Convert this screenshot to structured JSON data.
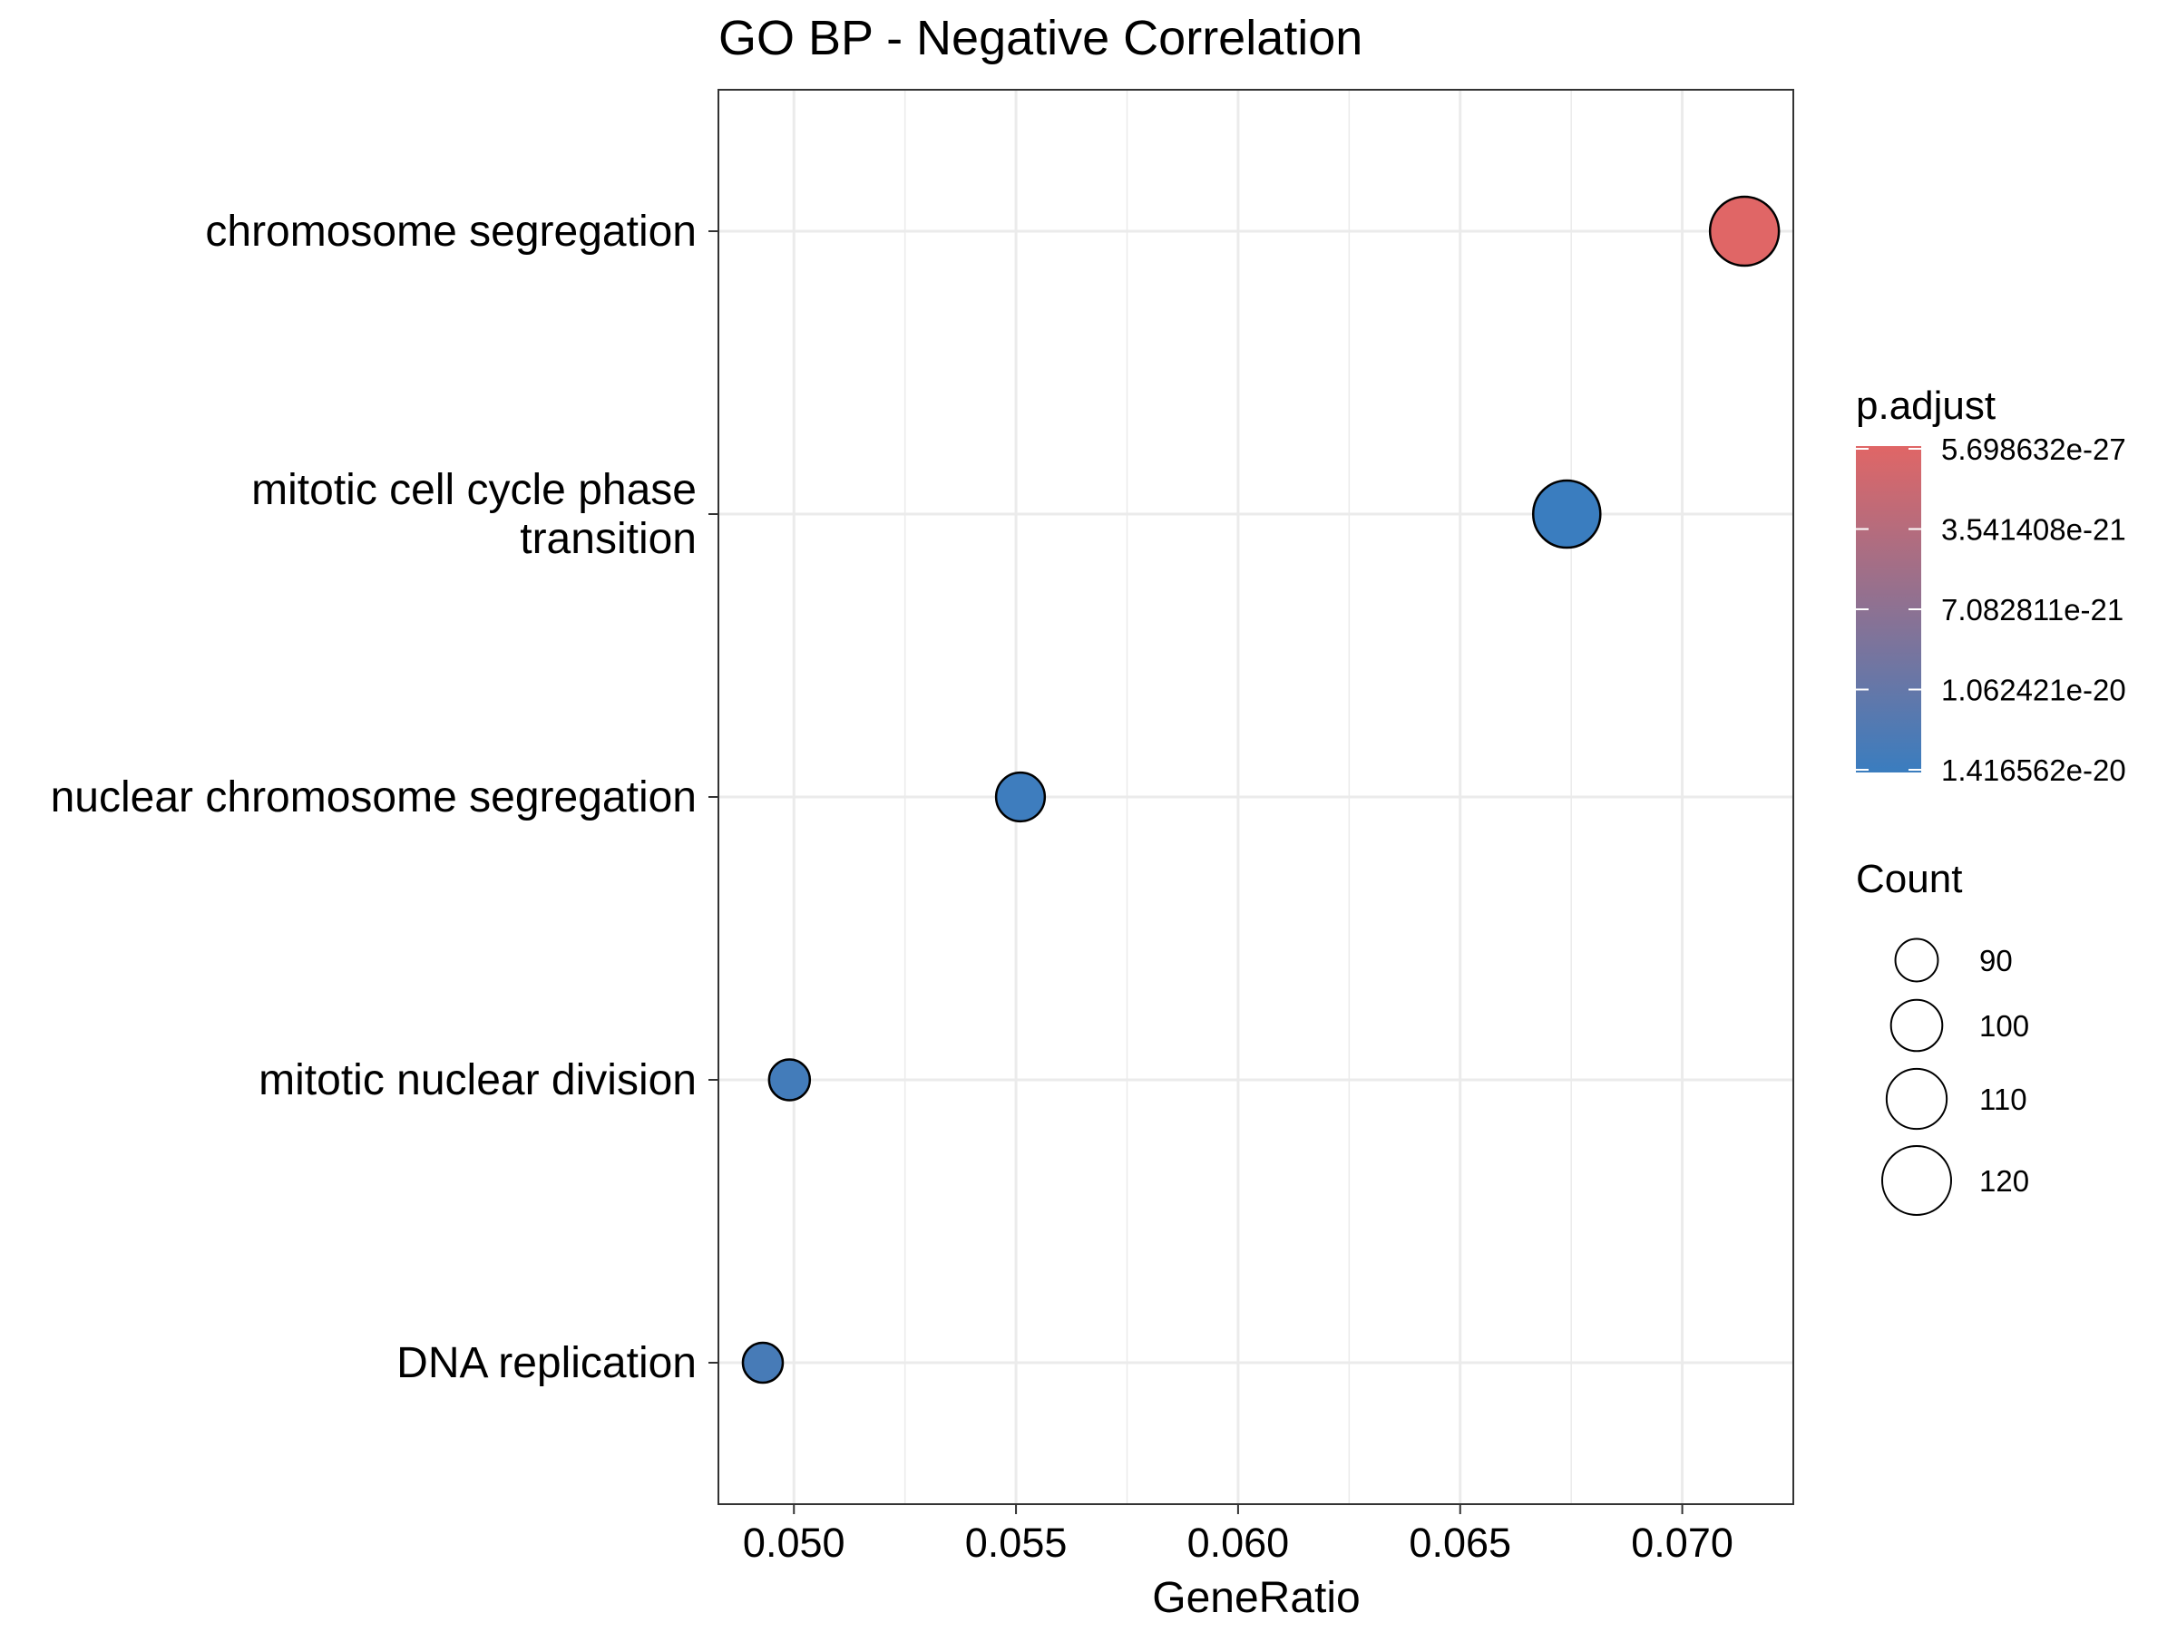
{
  "chart_data": {
    "type": "scatter",
    "title": "GO BP - Negative Correlation",
    "xlabel": "GeneRatio",
    "ylabel": "",
    "xlim": [
      0.0483,
      0.0725
    ],
    "xticks": [
      "0.050",
      "0.055",
      "0.060",
      "0.065",
      "0.070"
    ],
    "grid": true,
    "categories": [
      "chromosome segregation",
      "mitotic cell cycle phase transition",
      "nuclear chromosome segregation",
      "mitotic nuclear division",
      "DNA replication"
    ],
    "category_lines": [
      [
        "chromosome segregation"
      ],
      [
        "mitotic cell cycle phase",
        "transition"
      ],
      [
        "nuclear chromosome segregation"
      ],
      [
        "mitotic nuclear division"
      ],
      [
        "DNA replication"
      ]
    ],
    "points": [
      {
        "term": "chromosome segregation",
        "gene_ratio": 0.0714,
        "count": 120,
        "p_adjust": 5.698632e-27,
        "color": "#E06666"
      },
      {
        "term": "mitotic cell cycle phase transition",
        "gene_ratio": 0.0674,
        "count": 118,
        "p_adjust": 1.416562e-20,
        "color": "#3A7DBF"
      },
      {
        "term": "nuclear chromosome segregation",
        "gene_ratio": 0.0551,
        "count": 97,
        "p_adjust": 1.38e-20,
        "color": "#3E7DBE"
      },
      {
        "term": "mitotic nuclear division",
        "gene_ratio": 0.0499,
        "count": 88,
        "p_adjust": 1.3e-20,
        "color": "#437CBA"
      },
      {
        "term": "DNA replication",
        "gene_ratio": 0.0493,
        "count": 87,
        "p_adjust": 1.25e-20,
        "color": "#477BB7"
      }
    ],
    "legend_color": {
      "title": "p.adjust",
      "labels": [
        "5.698632e-27",
        "3.541408e-21",
        "7.082811e-21",
        "1.062421e-20",
        "1.416562e-20"
      ],
      "low_color": "#E06666",
      "high_color": "#3A7DBF"
    },
    "legend_size": {
      "title": "Count",
      "labels": [
        "90",
        "100",
        "110",
        "120"
      ],
      "values": [
        90,
        100,
        110,
        120
      ]
    }
  }
}
